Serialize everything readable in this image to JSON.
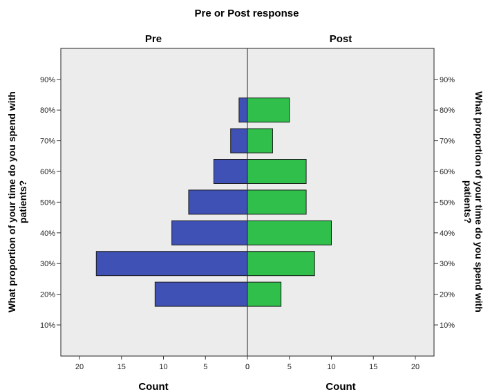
{
  "chart_data": {
    "type": "bar",
    "orientation": "horizontal",
    "layout": "population-pyramid",
    "title": "Pre or Post response",
    "categories": [
      "10%",
      "20%",
      "30%",
      "40%",
      "50%",
      "60%",
      "70%",
      "80%",
      "90%"
    ],
    "series": [
      {
        "name": "Pre",
        "values": [
          0,
          11,
          18,
          9,
          7,
          4,
          2,
          1,
          0
        ],
        "color": "#3f51b5"
      },
      {
        "name": "Post",
        "values": [
          0,
          4,
          8,
          10,
          7,
          7,
          3,
          5,
          0
        ],
        "color": "#2fbf4a"
      }
    ],
    "xlabel": "Count",
    "xticks": [
      20,
      15,
      10,
      5,
      0
    ],
    "xlim": [
      0,
      20
    ],
    "ylabel": "What proportion of your time do you spend with patients?",
    "ylabel_lines": [
      "What proportion of your time do you spend with",
      "patients?"
    ],
    "grid": false,
    "plot_background": "#ececec"
  }
}
